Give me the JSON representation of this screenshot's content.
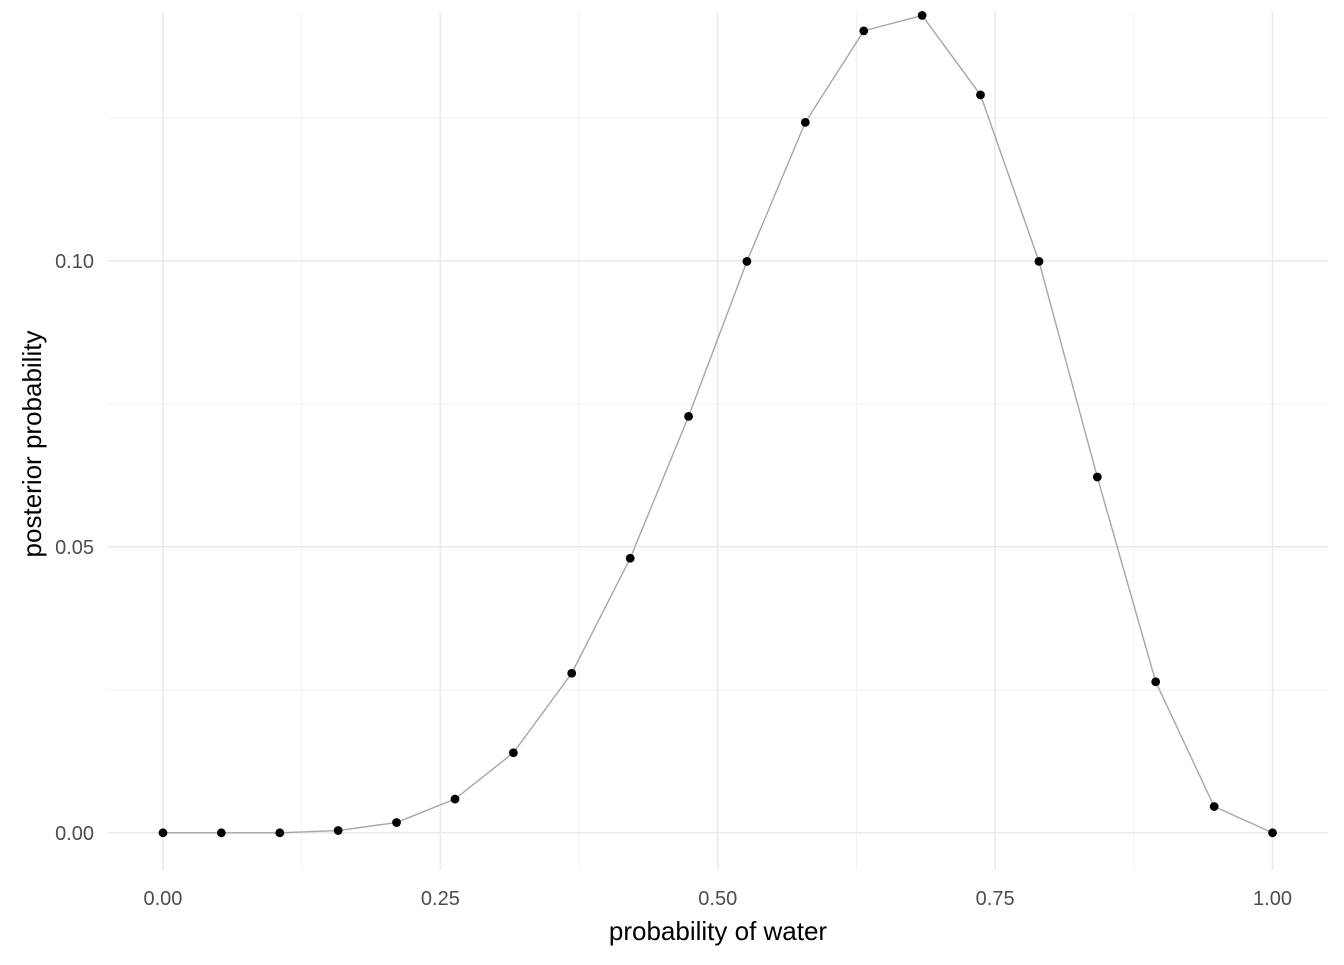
{
  "chart_data": {
    "type": "line",
    "xlabel": "probability of water",
    "ylabel": "posterior probability",
    "xlim": [
      -0.05,
      1.05
    ],
    "ylim": [
      -0.0065,
      0.1435
    ],
    "x_ticks": [
      0.0,
      0.25,
      0.5,
      0.75,
      1.0
    ],
    "x_tick_labels": [
      "0.00",
      "0.25",
      "0.50",
      "0.75",
      "1.00"
    ],
    "x_minor_ticks": [
      0.125,
      0.375,
      0.625,
      0.875
    ],
    "y_ticks": [
      0.0,
      0.05,
      0.1
    ],
    "y_tick_labels": [
      "0.00",
      "0.05",
      "0.10"
    ],
    "y_minor_ticks": [
      0.025,
      0.075,
      0.125
    ],
    "grid": true,
    "legend": "none",
    "line_color": "#a6a6a6",
    "point_color": "#000000",
    "series": [
      {
        "x": [
          0.0,
          0.0526,
          0.1053,
          0.1579,
          0.2105,
          0.2632,
          0.3158,
          0.3684,
          0.4211,
          0.4737,
          0.5263,
          0.5789,
          0.6316,
          0.6842,
          0.7368,
          0.7895,
          0.8421,
          0.8947,
          0.9474,
          1.0
        ],
        "values": [
          0.0,
          0.0,
          0.0,
          0.0004,
          0.0018,
          0.0059,
          0.014,
          0.0279,
          0.048,
          0.0728,
          0.0999,
          0.1242,
          0.1402,
          0.1429,
          0.129,
          0.0999,
          0.0622,
          0.0264,
          0.0046,
          0.0
        ]
      }
    ]
  }
}
